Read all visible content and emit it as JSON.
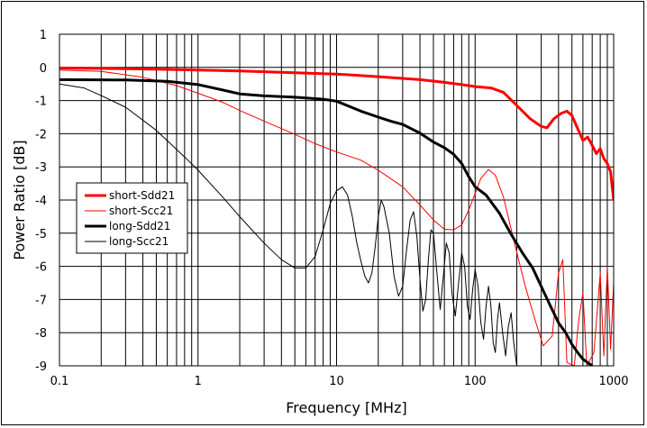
{
  "chart_data": {
    "type": "line",
    "title": "",
    "xlabel": "Frequency [MHz]",
    "ylabel": "Power Ratio [dB]",
    "xscale": "log",
    "xlim": [
      0.1,
      1000
    ],
    "ylim": [
      -9,
      1
    ],
    "xticks": [
      "0.1",
      "1",
      "10",
      "100",
      "1000"
    ],
    "yticks": [
      "1",
      "0",
      "-1",
      "-2",
      "-3",
      "-4",
      "-5",
      "-6",
      "-7",
      "-8",
      "-9"
    ],
    "grid": true,
    "legend_position": "middle-left",
    "series": [
      {
        "name": "short-Sdd21",
        "color": "#ff0000",
        "width": "thick",
        "points": [
          [
            0.1,
            -0.02
          ],
          [
            0.3,
            -0.04
          ],
          [
            0.6,
            -0.06
          ],
          [
            1,
            -0.08
          ],
          [
            2,
            -0.11
          ],
          [
            5,
            -0.16
          ],
          [
            10,
            -0.2
          ],
          [
            20,
            -0.28
          ],
          [
            40,
            -0.37
          ],
          [
            60,
            -0.45
          ],
          [
            80,
            -0.52
          ],
          [
            100,
            -0.58
          ],
          [
            130,
            -0.62
          ],
          [
            160,
            -0.75
          ],
          [
            200,
            -1.15
          ],
          [
            250,
            -1.55
          ],
          [
            300,
            -1.78
          ],
          [
            330,
            -1.82
          ],
          [
            370,
            -1.55
          ],
          [
            420,
            -1.38
          ],
          [
            460,
            -1.32
          ],
          [
            500,
            -1.45
          ],
          [
            550,
            -1.85
          ],
          [
            600,
            -2.2
          ],
          [
            650,
            -2.1
          ],
          [
            700,
            -2.35
          ],
          [
            750,
            -2.6
          ],
          [
            800,
            -2.45
          ],
          [
            850,
            -2.75
          ],
          [
            900,
            -2.9
          ],
          [
            950,
            -3.15
          ],
          [
            1000,
            -4.0
          ]
        ]
      },
      {
        "name": "short-Scc21",
        "color": "#ff0000",
        "width": "thin",
        "points": [
          [
            0.1,
            -0.08
          ],
          [
            0.2,
            -0.12
          ],
          [
            0.4,
            -0.3
          ],
          [
            0.7,
            -0.55
          ],
          [
            1,
            -0.78
          ],
          [
            1.5,
            -1.05
          ],
          [
            2,
            -1.3
          ],
          [
            3,
            -1.62
          ],
          [
            5,
            -2.02
          ],
          [
            7,
            -2.3
          ],
          [
            10,
            -2.55
          ],
          [
            15,
            -2.8
          ],
          [
            20,
            -3.1
          ],
          [
            30,
            -3.6
          ],
          [
            40,
            -4.15
          ],
          [
            50,
            -4.6
          ],
          [
            60,
            -4.88
          ],
          [
            70,
            -4.9
          ],
          [
            80,
            -4.75
          ],
          [
            90,
            -4.3
          ],
          [
            100,
            -3.8
          ],
          [
            110,
            -3.35
          ],
          [
            125,
            -3.08
          ],
          [
            140,
            -3.25
          ],
          [
            160,
            -3.9
          ],
          [
            190,
            -5.2
          ],
          [
            230,
            -6.6
          ],
          [
            270,
            -7.6
          ],
          [
            310,
            -8.4
          ],
          [
            360,
            -8.1
          ],
          [
            400,
            -6.2
          ],
          [
            430,
            -5.8
          ],
          [
            460,
            -8.9
          ],
          [
            520,
            -9.0
          ],
          [
            560,
            -7.6
          ],
          [
            600,
            -6.8
          ],
          [
            640,
            -9.0
          ],
          [
            720,
            -8.6
          ],
          [
            800,
            -6.2
          ],
          [
            850,
            -8.7
          ],
          [
            900,
            -6.0
          ],
          [
            950,
            -8.5
          ],
          [
            1000,
            -6.5
          ]
        ]
      },
      {
        "name": "long-Sdd21",
        "color": "#000000",
        "width": "thick",
        "points": [
          [
            0.1,
            -0.37
          ],
          [
            0.3,
            -0.38
          ],
          [
            0.6,
            -0.42
          ],
          [
            1,
            -0.52
          ],
          [
            1.5,
            -0.68
          ],
          [
            2,
            -0.8
          ],
          [
            3,
            -0.86
          ],
          [
            5,
            -0.9
          ],
          [
            8,
            -0.96
          ],
          [
            10,
            -1.02
          ],
          [
            15,
            -1.32
          ],
          [
            20,
            -1.5
          ],
          [
            25,
            -1.63
          ],
          [
            30,
            -1.72
          ],
          [
            40,
            -1.98
          ],
          [
            50,
            -2.25
          ],
          [
            60,
            -2.42
          ],
          [
            70,
            -2.62
          ],
          [
            80,
            -2.9
          ],
          [
            90,
            -3.3
          ],
          [
            100,
            -3.6
          ],
          [
            120,
            -3.85
          ],
          [
            150,
            -4.4
          ],
          [
            180,
            -5.0
          ],
          [
            220,
            -5.6
          ],
          [
            260,
            -6.05
          ],
          [
            300,
            -6.6
          ],
          [
            350,
            -7.2
          ],
          [
            400,
            -7.7
          ],
          [
            450,
            -8.0
          ],
          [
            500,
            -8.35
          ],
          [
            550,
            -8.6
          ],
          [
            600,
            -8.8
          ],
          [
            700,
            -9.0
          ]
        ]
      },
      {
        "name": "long-Scc21",
        "color": "#000000",
        "width": "thin",
        "points": [
          [
            0.1,
            -0.5
          ],
          [
            0.15,
            -0.62
          ],
          [
            0.2,
            -0.85
          ],
          [
            0.3,
            -1.2
          ],
          [
            0.5,
            -1.9
          ],
          [
            0.8,
            -2.7
          ],
          [
            1,
            -3.1
          ],
          [
            1.5,
            -3.9
          ],
          [
            2,
            -4.5
          ],
          [
            3,
            -5.3
          ],
          [
            4,
            -5.8
          ],
          [
            5,
            -6.05
          ],
          [
            6,
            -6.05
          ],
          [
            7,
            -5.7
          ],
          [
            8,
            -4.9
          ],
          [
            9,
            -4.1
          ],
          [
            10,
            -3.72
          ],
          [
            11,
            -3.6
          ],
          [
            12,
            -3.85
          ],
          [
            13,
            -4.5
          ],
          [
            14,
            -5.3
          ],
          [
            15,
            -5.85
          ],
          [
            16,
            -6.3
          ],
          [
            17,
            -6.5
          ],
          [
            18,
            -6.2
          ],
          [
            19,
            -5.4
          ],
          [
            20,
            -4.5
          ],
          [
            21,
            -4.0
          ],
          [
            22,
            -4.2
          ],
          [
            24,
            -5.0
          ],
          [
            26,
            -6.3
          ],
          [
            28,
            -6.9
          ],
          [
            30,
            -6.6
          ],
          [
            32,
            -5.5
          ],
          [
            34,
            -4.6
          ],
          [
            36,
            -4.35
          ],
          [
            38,
            -5.1
          ],
          [
            40,
            -6.4
          ],
          [
            42,
            -7.35
          ],
          [
            44,
            -7.0
          ],
          [
            46,
            -5.8
          ],
          [
            48,
            -4.9
          ],
          [
            50,
            -5.0
          ],
          [
            53,
            -6.2
          ],
          [
            56,
            -7.3
          ],
          [
            59,
            -6.3
          ],
          [
            62,
            -5.3
          ],
          [
            65,
            -5.6
          ],
          [
            68,
            -6.8
          ],
          [
            72,
            -7.5
          ],
          [
            76,
            -6.5
          ],
          [
            80,
            -5.6
          ],
          [
            84,
            -6.0
          ],
          [
            88,
            -7.2
          ],
          [
            92,
            -7.6
          ],
          [
            96,
            -6.7
          ],
          [
            100,
            -6.1
          ],
          [
            105,
            -6.6
          ],
          [
            110,
            -7.7
          ],
          [
            115,
            -8.2
          ],
          [
            120,
            -7.2
          ],
          [
            125,
            -6.6
          ],
          [
            130,
            -7.2
          ],
          [
            135,
            -8.3
          ],
          [
            140,
            -8.6
          ],
          [
            145,
            -7.6
          ],
          [
            150,
            -7.1
          ],
          [
            158,
            -8.0
          ],
          [
            166,
            -8.7
          ],
          [
            174,
            -7.8
          ],
          [
            182,
            -7.4
          ],
          [
            190,
            -8.3
          ],
          [
            200,
            -9.0
          ]
        ]
      }
    ]
  }
}
